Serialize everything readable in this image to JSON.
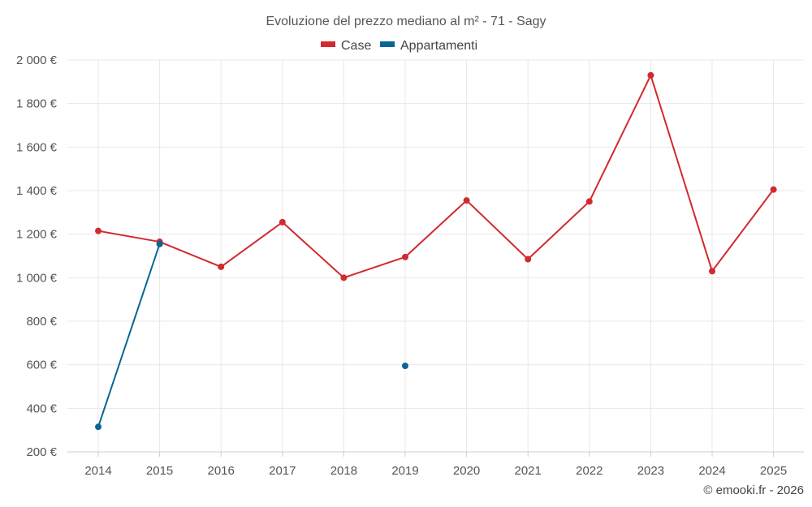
{
  "chart_data": {
    "type": "line",
    "title": "Evoluzione del prezzo mediano al m² - 71 - Sagy",
    "categories": [
      "2014",
      "2015",
      "2016",
      "2017",
      "2018",
      "2019",
      "2020",
      "2021",
      "2022",
      "2023",
      "2024",
      "2025"
    ],
    "y_tick_labels": [
      "200 €",
      "400 €",
      "600 €",
      "800 €",
      "1 000 €",
      "1 200 €",
      "1 400 €",
      "1 600 €",
      "1 800 €",
      "2 000 €"
    ],
    "y_ticks": [
      200,
      400,
      600,
      800,
      1000,
      1200,
      1400,
      1600,
      1800,
      2000
    ],
    "ylim": [
      200,
      2000
    ],
    "grid": true,
    "legend_position": "top-center",
    "series": [
      {
        "name": "Case",
        "color": "#d12a2f",
        "values": [
          1215,
          1165,
          1050,
          1255,
          1000,
          1095,
          1355,
          1085,
          1350,
          1930,
          1030,
          1405
        ]
      },
      {
        "name": "Appartamenti",
        "color": "#0a6496",
        "values": [
          315,
          1155,
          null,
          null,
          null,
          595,
          null,
          null,
          null,
          null,
          null,
          null
        ]
      }
    ]
  },
  "footer": {
    "copyright": "© emooki.fr - 2026"
  }
}
